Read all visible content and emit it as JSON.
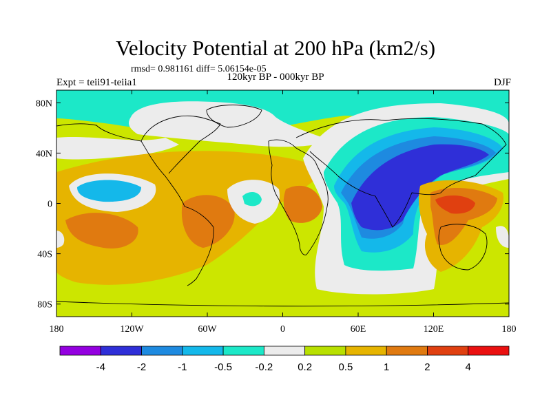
{
  "title": "Velocity Potential at 200 hPa (km2/s)",
  "stats": "rmsd= 0.981161 diff= 5.06154e-05",
  "expt": "Expt = teii91-teiia1",
  "period": "120kyr BP - 000kyr BP",
  "season": "DJF",
  "colors": {
    "ocean": "#cce600",
    "m4": "#9400e0",
    "m3": "#2f2fd8",
    "m2": "#1e8ae0",
    "m1": "#14b8ea",
    "m05": "#1ce8c8",
    "near0": "#ececec",
    "p05": "#b8e000",
    "p1": "#e6b400",
    "p2": "#e07a10",
    "p4": "#e04010",
    "p5": "#ea1010"
  },
  "chart_data": {
    "type": "filled-contour-map",
    "xlim": [
      -180,
      180
    ],
    "ylim": [
      -90,
      90
    ],
    "x_ticks": [
      "180",
      "120W",
      "60W",
      "0",
      "60E",
      "120E",
      "180"
    ],
    "y_ticks": [
      "80N",
      "40N",
      "0",
      "40S",
      "80S"
    ],
    "colorbar_levels": [
      "-4",
      "-2",
      "-1",
      "-0.5",
      "-0.2",
      "0.2",
      "0.5",
      "1",
      "2",
      "4"
    ],
    "colorbar_colors": [
      "#9400e0",
      "#2f2fd8",
      "#1e8ae0",
      "#14b8ea",
      "#1ce8c8",
      "#ececec",
      "#b8e000",
      "#e6b400",
      "#e07a10",
      "#e04010",
      "#ea1010"
    ]
  }
}
